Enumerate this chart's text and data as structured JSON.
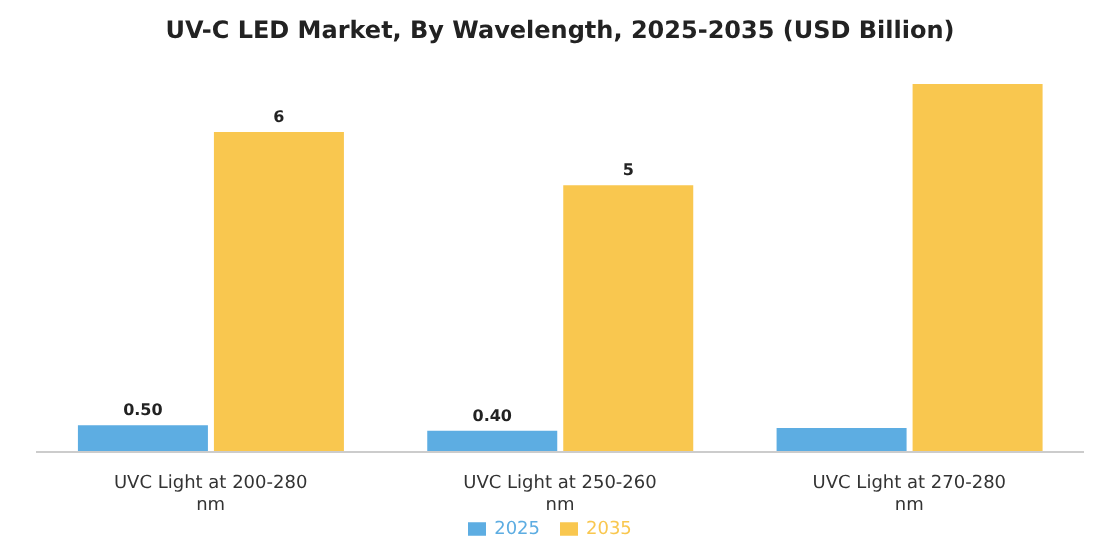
{
  "chart_data": {
    "type": "bar",
    "title": "UV-C LED Market, By Wavelength, 2025-2035 (USD Billion)",
    "categories": [
      "UVC Light at 200-280 nm",
      "UVC Light at 250-260 nm",
      "UVC Light at 270-280 nm"
    ],
    "series": [
      {
        "name": "2025",
        "color": "#5dade2",
        "values": [
          0.5,
          0.4,
          0.45
        ],
        "value_labels": [
          "0.50",
          "0.40",
          null
        ]
      },
      {
        "name": "2035",
        "color": "#f9c74f",
        "values": [
          6,
          5,
          6.9
        ],
        "value_labels": [
          "6",
          "5",
          null
        ]
      }
    ],
    "legend": "bottom",
    "grid": false
  }
}
